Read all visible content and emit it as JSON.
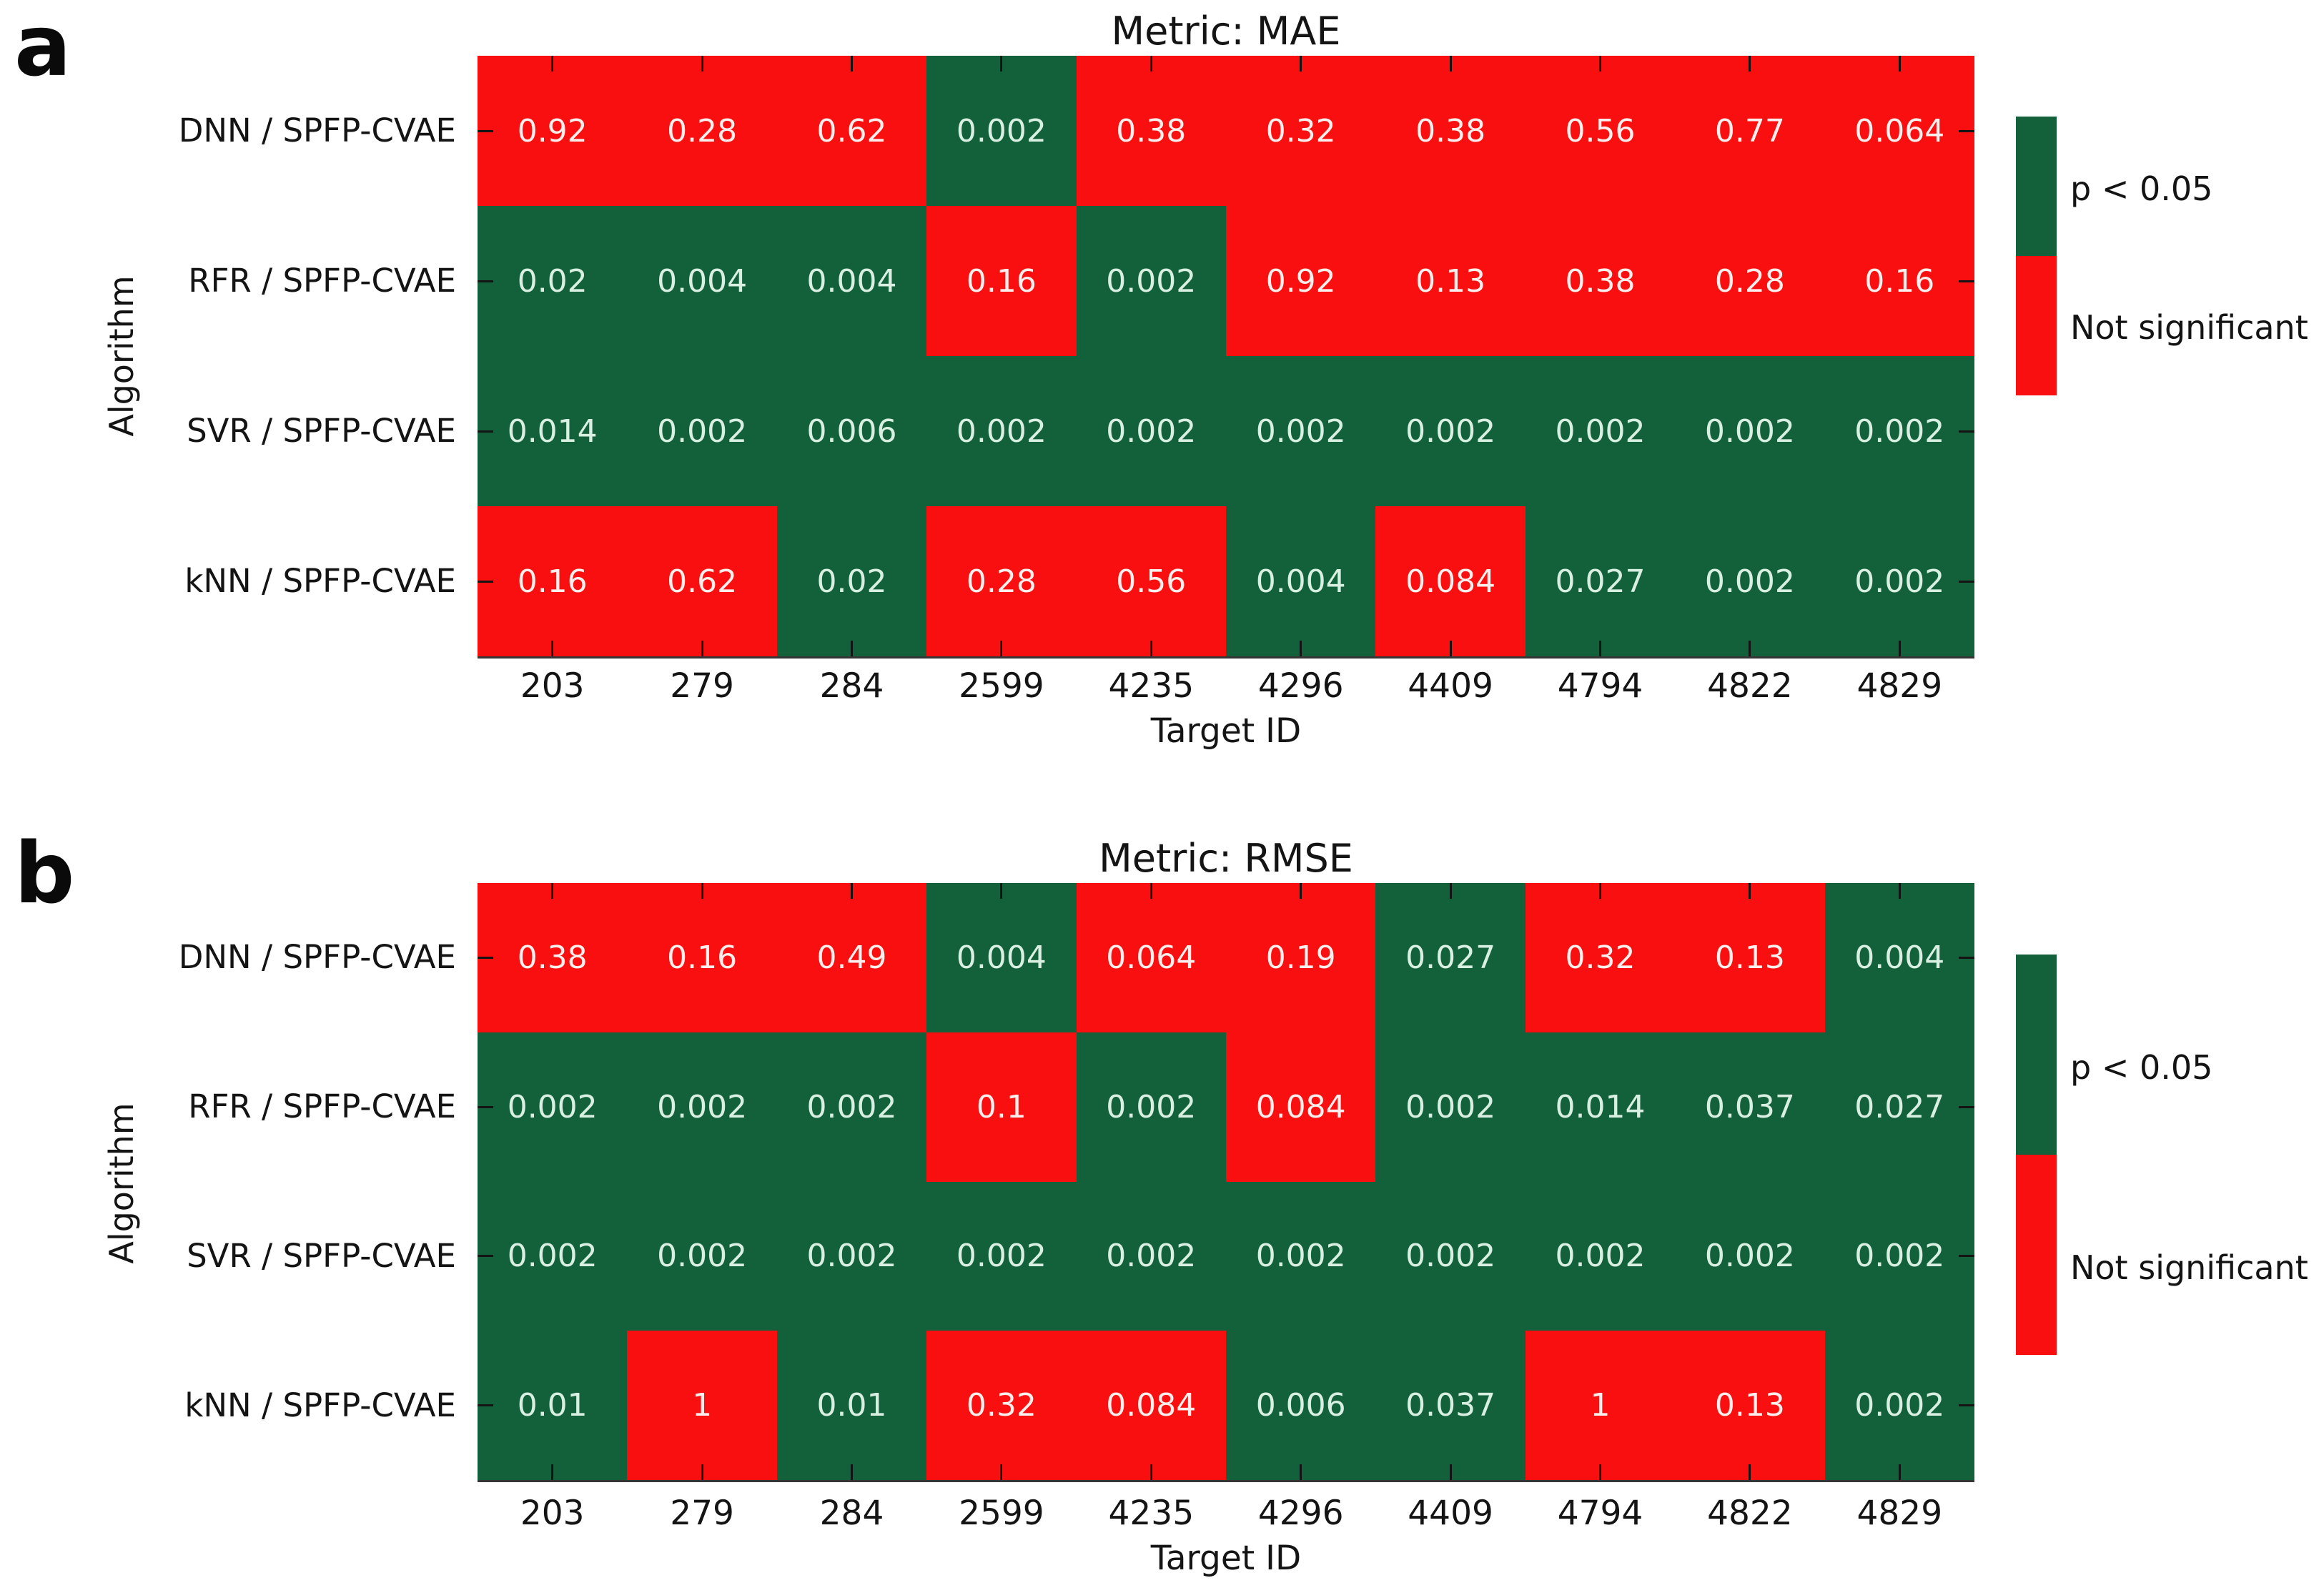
{
  "figure": {
    "background": "#ffffff",
    "colors": {
      "significant": "#13613a",
      "not_significant": "#f90f0f",
      "cell_text_on_significant": "#d9efe2",
      "cell_text_on_not_significant": "#fceeec",
      "axis_text": "#141414"
    },
    "panels": [
      {
        "letter": "a"
      },
      {
        "letter": "b"
      }
    ]
  },
  "chart_data": [
    {
      "type": "heatmap",
      "title": "Metric: MAE",
      "xlabel": "Target ID",
      "ylabel": "Algorithm",
      "x_tick_labels": [
        "203",
        "279",
        "284",
        "2599",
        "4235",
        "4296",
        "4409",
        "4794",
        "4822",
        "4829"
      ],
      "y_tick_labels": [
        "DNN / SPFP-CVAE",
        "RFR / SPFP-CVAE",
        "SVR / SPFP-CVAE",
        "kNN / SPFP-CVAE"
      ],
      "cell_labels": [
        [
          "0.92",
          "0.28",
          "0.62",
          "0.002",
          "0.38",
          "0.32",
          "0.38",
          "0.56",
          "0.77",
          "0.064"
        ],
        [
          "0.02",
          "0.004",
          "0.004",
          "0.16",
          "0.002",
          "0.92",
          "0.13",
          "0.38",
          "0.28",
          "0.16"
        ],
        [
          "0.014",
          "0.002",
          "0.006",
          "0.002",
          "0.002",
          "0.002",
          "0.002",
          "0.002",
          "0.002",
          "0.002"
        ],
        [
          "0.16",
          "0.62",
          "0.02",
          "0.28",
          "0.56",
          "0.004",
          "0.084",
          "0.027",
          "0.002",
          "0.002"
        ]
      ],
      "values": [
        [
          0.92,
          0.28,
          0.62,
          0.002,
          0.38,
          0.32,
          0.38,
          0.56,
          0.77,
          0.064
        ],
        [
          0.02,
          0.004,
          0.004,
          0.16,
          0.002,
          0.92,
          0.13,
          0.38,
          0.28,
          0.16
        ],
        [
          0.014,
          0.002,
          0.006,
          0.002,
          0.002,
          0.002,
          0.002,
          0.002,
          0.002,
          0.002
        ],
        [
          0.16,
          0.62,
          0.02,
          0.28,
          0.56,
          0.004,
          0.084,
          0.027,
          0.002,
          0.002
        ]
      ],
      "significance_threshold": 0.05,
      "color_rule": "green if p < 0.05 else red",
      "legend": {
        "significant": "p < 0.05",
        "not_significant": "Not significant"
      },
      "legend_position": "right",
      "grid": false
    },
    {
      "type": "heatmap",
      "title": "Metric: RMSE",
      "xlabel": "Target ID",
      "ylabel": "Algorithm",
      "x_tick_labels": [
        "203",
        "279",
        "284",
        "2599",
        "4235",
        "4296",
        "4409",
        "4794",
        "4822",
        "4829"
      ],
      "y_tick_labels": [
        "DNN / SPFP-CVAE",
        "RFR / SPFP-CVAE",
        "SVR / SPFP-CVAE",
        "kNN / SPFP-CVAE"
      ],
      "cell_labels": [
        [
          "0.38",
          "0.16",
          "0.49",
          "0.004",
          "0.064",
          "0.19",
          "0.027",
          "0.32",
          "0.13",
          "0.004"
        ],
        [
          "0.002",
          "0.002",
          "0.002",
          "0.1",
          "0.002",
          "0.084",
          "0.002",
          "0.014",
          "0.037",
          "0.027"
        ],
        [
          "0.002",
          "0.002",
          "0.002",
          "0.002",
          "0.002",
          "0.002",
          "0.002",
          "0.002",
          "0.002",
          "0.002"
        ],
        [
          "0.01",
          "1",
          "0.01",
          "0.32",
          "0.084",
          "0.006",
          "0.037",
          "1",
          "0.13",
          "0.002"
        ]
      ],
      "values": [
        [
          0.38,
          0.16,
          0.49,
          0.004,
          0.064,
          0.19,
          0.027,
          0.32,
          0.13,
          0.004
        ],
        [
          0.002,
          0.002,
          0.002,
          0.1,
          0.002,
          0.084,
          0.002,
          0.014,
          0.037,
          0.027
        ],
        [
          0.002,
          0.002,
          0.002,
          0.002,
          0.002,
          0.002,
          0.002,
          0.002,
          0.002,
          0.002
        ],
        [
          0.01,
          1,
          0.01,
          0.32,
          0.084,
          0.006,
          0.037,
          1,
          0.13,
          0.002
        ]
      ],
      "significance_threshold": 0.05,
      "color_rule": "green if p < 0.05 else red",
      "legend": {
        "significant": "p < 0.05",
        "not_significant": "Not significant"
      },
      "legend_position": "right",
      "grid": false
    }
  ]
}
